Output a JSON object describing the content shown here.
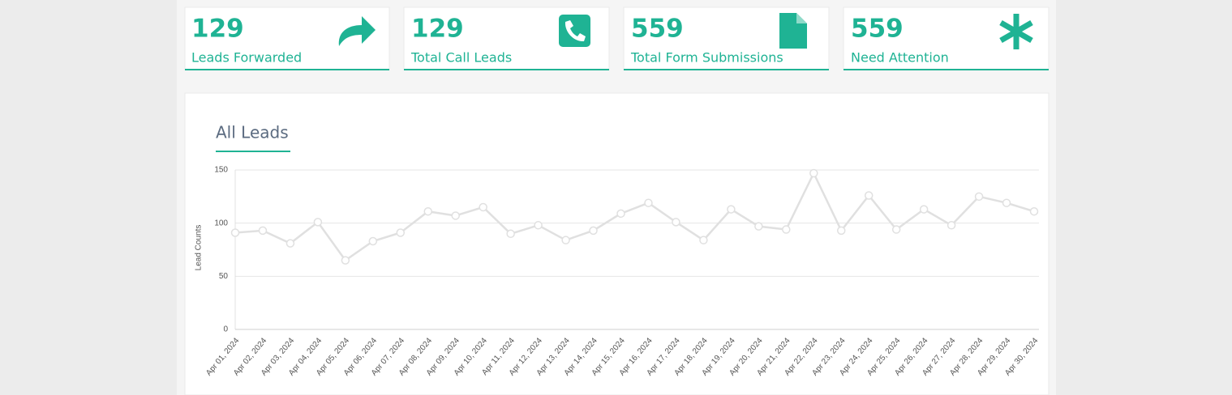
{
  "cards": [
    {
      "value": 129,
      "label": "Leads Forwarded"
    },
    {
      "value": 129,
      "label": "Total Call Leads"
    },
    {
      "value": 559,
      "label": "Total Form Submissions"
    },
    {
      "value": 559,
      "label": "Need Attention"
    }
  ],
  "chart_data": {
    "type": "line",
    "title": "All Leads",
    "y_label": "Lead Counts",
    "categories": [
      "Apr 01, 2024",
      "Apr 02, 2024",
      "Apr 03, 2024",
      "Apr 04, 2024",
      "Apr 05, 2024",
      "Apr 06, 2024",
      "Apr 07, 2024",
      "Apr 08, 2024",
      "Apr 09, 2024",
      "Apr 10, 2024",
      "Apr 11, 2024",
      "Apr 12, 2024",
      "Apr 13, 2024",
      "Apr 14, 2024",
      "Apr 15, 2024",
      "Apr 16, 2024",
      "Apr 17, 2024",
      "Apr 18, 2024",
      "Apr 19, 2024",
      "Apr 20, 2024",
      "Apr 21, 2024",
      "Apr 22, 2024",
      "Apr 23, 2024",
      "Apr 24, 2024",
      "Apr 25, 2024",
      "Apr 26, 2024",
      "Apr 27, 2024",
      "Apr 28, 2024",
      "Apr 29, 2024",
      "Apr 30, 2024"
    ],
    "values": [
      91,
      93,
      81,
      101,
      65,
      83,
      91,
      111,
      107,
      115,
      90,
      98,
      84,
      93,
      109,
      119,
      101,
      84,
      113,
      97,
      94,
      147,
      93,
      126,
      94,
      113,
      98,
      125,
      119,
      111
    ],
    "color": "#e0e0e0",
    "ylim": [
      0,
      150
    ],
    "yticks": [
      0,
      50,
      100,
      150
    ],
    "grid": true
  }
}
